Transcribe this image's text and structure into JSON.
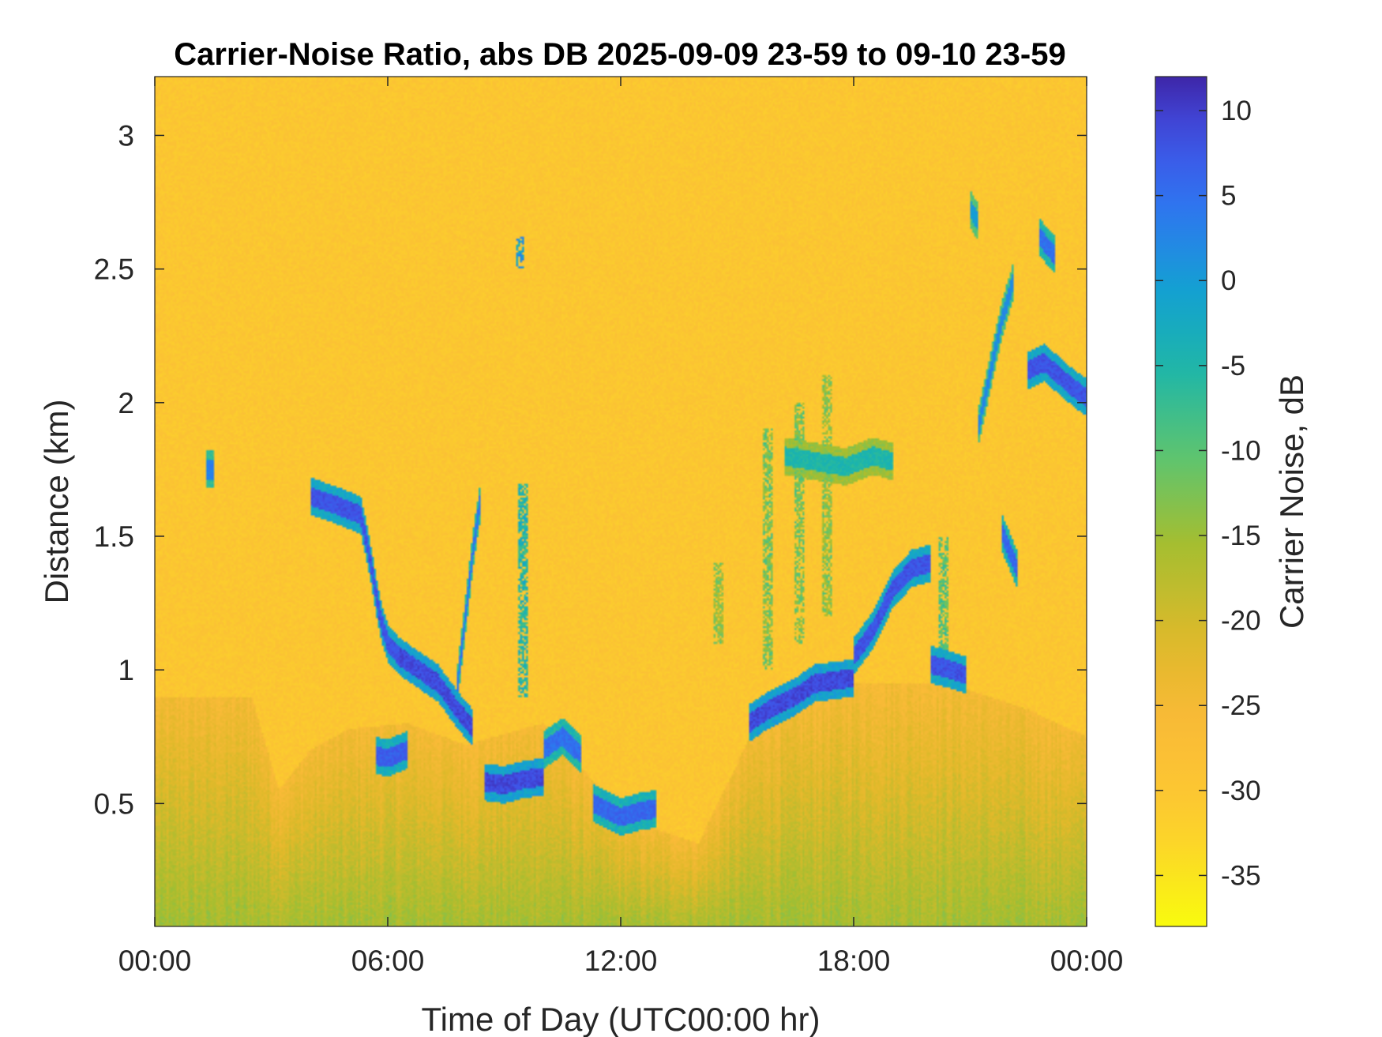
{
  "chart_data": {
    "type": "heatmap",
    "title": "Carrier-Noise Ratio, abs DB 2025-09-09 23-59 to 09-10 23-59",
    "xlabel": "Time of Day (UTC00:00 hr)",
    "ylabel": "Distance (km)",
    "colorbar_label": "Carrier Noise, dB",
    "x_range_hours": [
      0,
      24
    ],
    "y_range_km": [
      0.04,
      3.22
    ],
    "c_range_db": [
      -38,
      12
    ],
    "x_ticks": [
      {
        "value": 0,
        "label": "00:00"
      },
      {
        "value": 6,
        "label": "06:00"
      },
      {
        "value": 12,
        "label": "12:00"
      },
      {
        "value": 18,
        "label": "18:00"
      },
      {
        "value": 24,
        "label": "00:00"
      }
    ],
    "y_ticks": [
      {
        "value": 0.5,
        "label": "0.5"
      },
      {
        "value": 1,
        "label": "1"
      },
      {
        "value": 1.5,
        "label": "1.5"
      },
      {
        "value": 2,
        "label": "2"
      },
      {
        "value": 2.5,
        "label": "2.5"
      },
      {
        "value": 3,
        "label": "3"
      }
    ],
    "colorbar_ticks": [
      {
        "value": 10,
        "label": "10"
      },
      {
        "value": 5,
        "label": "5"
      },
      {
        "value": 0,
        "label": "0"
      },
      {
        "value": -5,
        "label": "-5"
      },
      {
        "value": -10,
        "label": "-10"
      },
      {
        "value": -15,
        "label": "-15"
      },
      {
        "value": -20,
        "label": "-20"
      },
      {
        "value": -25,
        "label": "-25"
      },
      {
        "value": -30,
        "label": "-30"
      },
      {
        "value": -35,
        "label": "-35"
      }
    ],
    "colormap": "parula-reversed",
    "background_level_db": -30,
    "boundary_layer_top_km": [
      {
        "t": 0,
        "h": 0.9
      },
      {
        "t": 2.5,
        "h": 0.9
      },
      {
        "t": 3.2,
        "h": 0.55
      },
      {
        "t": 4.0,
        "h": 0.7
      },
      {
        "t": 5.0,
        "h": 0.78
      },
      {
        "t": 6.5,
        "h": 0.8
      },
      {
        "t": 8.0,
        "h": 0.72
      },
      {
        "t": 10.0,
        "h": 0.8
      },
      {
        "t": 11.5,
        "h": 0.55
      },
      {
        "t": 12.0,
        "h": 0.45
      },
      {
        "t": 14.0,
        "h": 0.35
      },
      {
        "t": 15.5,
        "h": 0.8
      },
      {
        "t": 18.0,
        "h": 0.95
      },
      {
        "t": 20.5,
        "h": 0.95
      },
      {
        "t": 22.5,
        "h": 0.85
      },
      {
        "t": 24.0,
        "h": 0.75
      }
    ],
    "cloud_layers": [
      {
        "t": [
          1.3,
          1.5
        ],
        "h": [
          1.75,
          1.75
        ],
        "db": 3
      },
      {
        "t": [
          4.0,
          4.6,
          5.3,
          5.5,
          5.8,
          6.0,
          6.3
        ],
        "h": [
          1.65,
          1.62,
          1.58,
          1.45,
          1.2,
          1.1,
          1.05
        ],
        "db": 8
      },
      {
        "t": [
          6.3,
          6.8,
          7.3,
          7.8,
          8.2
        ],
        "h": [
          1.05,
          1.0,
          0.95,
          0.85,
          0.78
        ],
        "db": 9
      },
      {
        "t": [
          5.7,
          6.0,
          6.5
        ],
        "h": [
          0.68,
          0.67,
          0.7
        ],
        "db": 7
      },
      {
        "t": [
          8.5,
          9.0,
          9.5,
          10.0
        ],
        "h": [
          0.58,
          0.57,
          0.59,
          0.6
        ],
        "db": 9
      },
      {
        "t": [
          10.0,
          10.5,
          11.0
        ],
        "h": [
          0.7,
          0.75,
          0.68
        ],
        "db": 5
      },
      {
        "t": [
          11.3,
          12.0,
          12.5,
          12.9
        ],
        "h": [
          0.5,
          0.45,
          0.47,
          0.48
        ],
        "db": 6
      },
      {
        "t": [
          7.8,
          8.0,
          8.2,
          8.4
        ],
        "h": [
          0.95,
          1.2,
          1.45,
          1.65
        ],
        "db": 4
      },
      {
        "t": [
          15.3,
          15.8,
          16.5,
          17.0,
          17.5,
          18.0
        ],
        "h": [
          0.8,
          0.85,
          0.9,
          0.95,
          0.96,
          0.97
        ],
        "db": 9
      },
      {
        "t": [
          18.0,
          18.5,
          19.0,
          19.5,
          20.0
        ],
        "h": [
          1.05,
          1.15,
          1.3,
          1.38,
          1.4
        ],
        "db": 8
      },
      {
        "t": [
          20.0,
          20.5,
          20.9
        ],
        "h": [
          1.02,
          1.0,
          0.98
        ],
        "db": 8
      },
      {
        "t": [
          16.2,
          17.0,
          17.8,
          18.5,
          19.0
        ],
        "h": [
          1.8,
          1.78,
          1.76,
          1.8,
          1.78
        ],
        "db": -5
      },
      {
        "t": [
          21.2,
          21.5,
          21.8,
          22.1
        ],
        "h": [
          1.9,
          2.1,
          2.3,
          2.45
        ],
        "db": 2
      },
      {
        "t": [
          22.5,
          22.9,
          23.3,
          23.7,
          24.0
        ],
        "h": [
          2.12,
          2.15,
          2.1,
          2.05,
          2.02
        ],
        "db": 8
      },
      {
        "t": [
          22.8,
          23.0,
          23.2
        ],
        "h": [
          2.62,
          2.58,
          2.55
        ],
        "db": 5
      },
      {
        "t": [
          21.0,
          21.1,
          21.2
        ],
        "h": [
          2.73,
          2.7,
          2.68
        ],
        "db": 0
      },
      {
        "t": [
          21.8,
          22.0,
          22.2
        ],
        "h": [
          1.52,
          1.45,
          1.38
        ],
        "db": 6
      }
    ],
    "plumes": [
      {
        "t": 9.5,
        "h_min": 0.9,
        "h_max": 1.7,
        "db": -5
      },
      {
        "t": 9.4,
        "h_min": 2.5,
        "h_max": 2.62,
        "db": 0
      },
      {
        "t": 15.8,
        "h_min": 1.0,
        "h_max": 1.9,
        "db": -12
      },
      {
        "t": 16.6,
        "h_min": 1.1,
        "h_max": 2.0,
        "db": -12
      },
      {
        "t": 17.3,
        "h_min": 1.2,
        "h_max": 2.1,
        "db": -13
      },
      {
        "t": 14.5,
        "h_min": 1.1,
        "h_max": 1.4,
        "db": -14
      },
      {
        "t": 20.3,
        "h_min": 1.0,
        "h_max": 1.5,
        "db": -10
      }
    ]
  }
}
